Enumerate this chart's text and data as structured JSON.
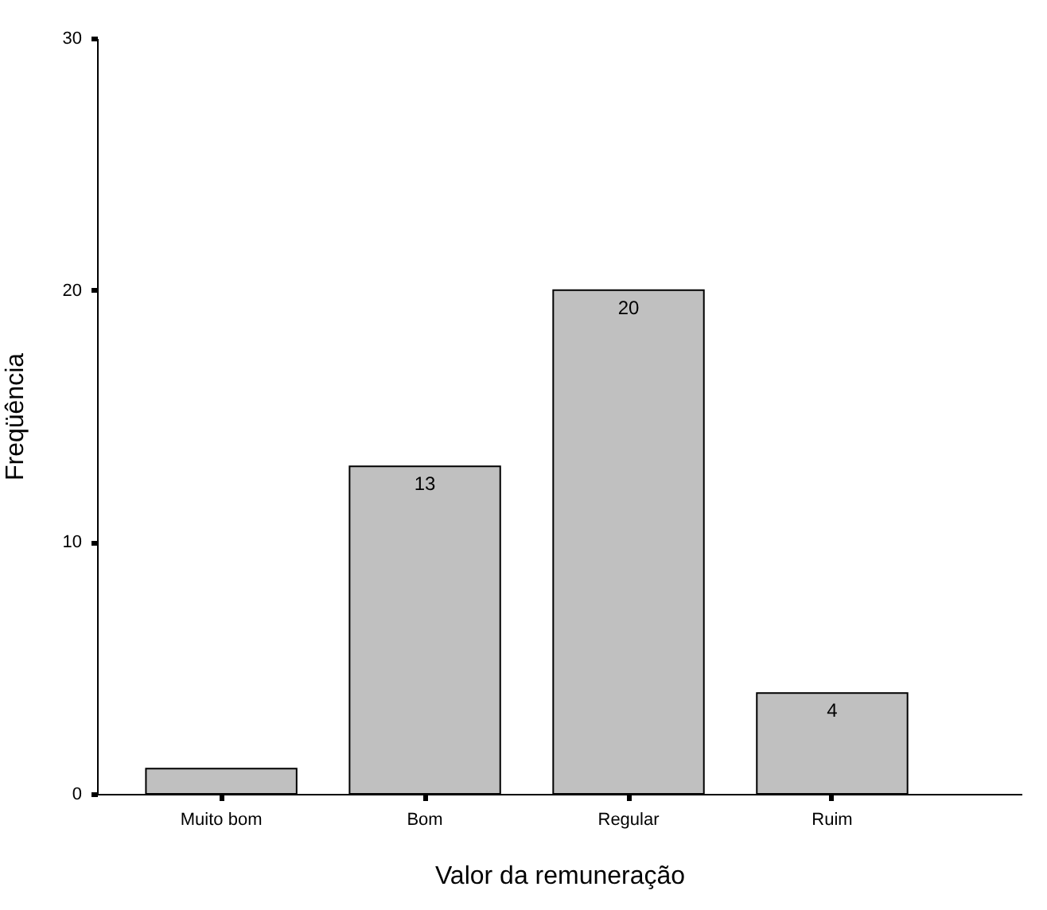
{
  "chart_data": {
    "type": "bar",
    "xlabel": "Valor da remuneração",
    "ylabel": "Freqüência",
    "categories": [
      "Muito bom",
      "Bom",
      "Regular",
      "Ruim"
    ],
    "values": [
      1,
      13,
      20,
      4
    ],
    "value_labels": [
      null,
      "13",
      "20",
      "4"
    ],
    "color": "#c0c0c0",
    "ylim": [
      0,
      30
    ],
    "yticks": [
      0,
      10,
      20,
      30
    ],
    "grid": false
  }
}
